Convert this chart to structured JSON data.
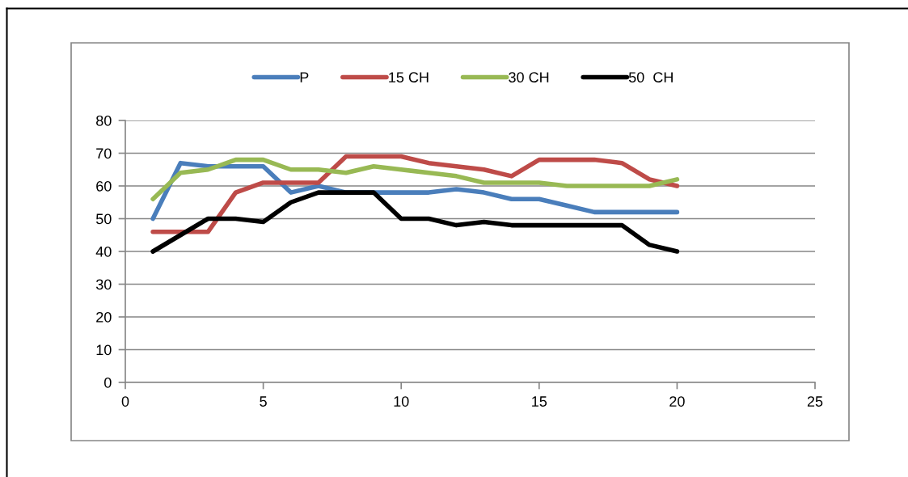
{
  "chart_data": {
    "type": "line",
    "x": [
      1,
      2,
      3,
      4,
      5,
      6,
      7,
      8,
      9,
      10,
      11,
      12,
      13,
      14,
      15,
      16,
      17,
      18,
      19,
      20
    ],
    "series": [
      {
        "name": "P",
        "color": "#4a7ebb",
        "values": [
          50,
          67,
          66,
          66,
          66,
          58,
          60,
          58,
          58,
          58,
          58,
          59,
          58,
          56,
          56,
          54,
          52,
          52,
          52,
          52
        ]
      },
      {
        "name": "15 CH",
        "color": "#be4b48",
        "values": [
          46,
          46,
          46,
          58,
          61,
          61,
          61,
          69,
          69,
          69,
          67,
          66,
          65,
          63,
          68,
          68,
          68,
          67,
          62,
          60
        ]
      },
      {
        "name": "30 CH",
        "color": "#98b954",
        "values": [
          56,
          64,
          65,
          68,
          68,
          65,
          65,
          64,
          66,
          65,
          64,
          63,
          61,
          61,
          61,
          60,
          60,
          60,
          60,
          62
        ]
      },
      {
        "name": "50  CH",
        "color": "#000000",
        "values": [
          40,
          45,
          50,
          50,
          49,
          55,
          58,
          58,
          58,
          50,
          50,
          48,
          49,
          48,
          48,
          48,
          48,
          48,
          42,
          40
        ]
      }
    ],
    "xlim": [
      0,
      25
    ],
    "xticks": [
      0,
      5,
      10,
      15,
      20,
      25
    ],
    "ylim": [
      0,
      80
    ],
    "yticks": [
      0,
      10,
      20,
      30,
      40,
      50,
      60,
      70,
      80
    ],
    "grid": "y",
    "legend": "top",
    "line_style": "solid"
  }
}
